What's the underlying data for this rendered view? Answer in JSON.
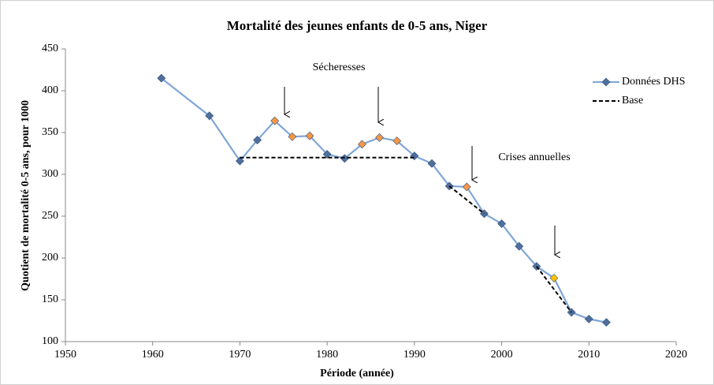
{
  "chart_data": {
    "type": "line",
    "title": "Mortalité des jeunes enfants de 0-5 ans, Niger",
    "xlabel": "Période (année)",
    "ylabel": "Quotient de mortalité 0-5 ans, pour 1000",
    "xlim": [
      1950,
      2020
    ],
    "xticks": [
      1950,
      1960,
      1970,
      1980,
      1990,
      2000,
      2010,
      2020
    ],
    "ylim": [
      100,
      450
    ],
    "yticks": [
      100,
      150,
      200,
      250,
      300,
      350,
      400,
      450
    ],
    "grid": false,
    "legend": "upper right",
    "annotations": [
      "Sécheresses",
      "Crises annuelles"
    ],
    "series": [
      {
        "name": "Données DHS",
        "color": "#7ea6d8",
        "marker": "diamond",
        "x": [
          1961,
          1966.5,
          1970,
          1972,
          1974,
          1976,
          1978,
          1980,
          1982,
          1984,
          1986,
          1988,
          1990,
          1992,
          1994,
          1996,
          1998,
          2000,
          2002,
          2004,
          2006,
          2008,
          2010,
          2012
        ],
        "values": [
          415,
          370,
          316,
          341,
          364,
          345,
          346,
          324,
          319,
          336,
          344,
          340,
          322,
          313,
          286,
          285,
          253,
          241,
          214,
          190,
          176,
          135,
          127,
          123
        ],
        "marker_colors": [
          "#4f6f9c",
          "#4f6f9c",
          "#4f6f9c",
          "#4f6f9c",
          "#f79646",
          "#f79646",
          "#f79646",
          "#4f6f9c",
          "#4f6f9c",
          "#f79646",
          "#f79646",
          "#f79646",
          "#4f6f9c",
          "#4f6f9c",
          "#4f6f9c",
          "#f79646",
          "#4f6f9c",
          "#4f6f9c",
          "#4f6f9c",
          "#4f6f9c",
          "#ffc000",
          "#4f6f9c",
          "#4f6f9c",
          "#4f6f9c"
        ]
      },
      {
        "name": "Base",
        "color": "#000000",
        "dashed": true,
        "x": [
          1970,
          1990,
          1992,
          1994,
          1998,
          2000,
          2004,
          2008
        ],
        "values": [
          320,
          320,
          null,
          286,
          253,
          null,
          190,
          135
        ]
      }
    ]
  }
}
